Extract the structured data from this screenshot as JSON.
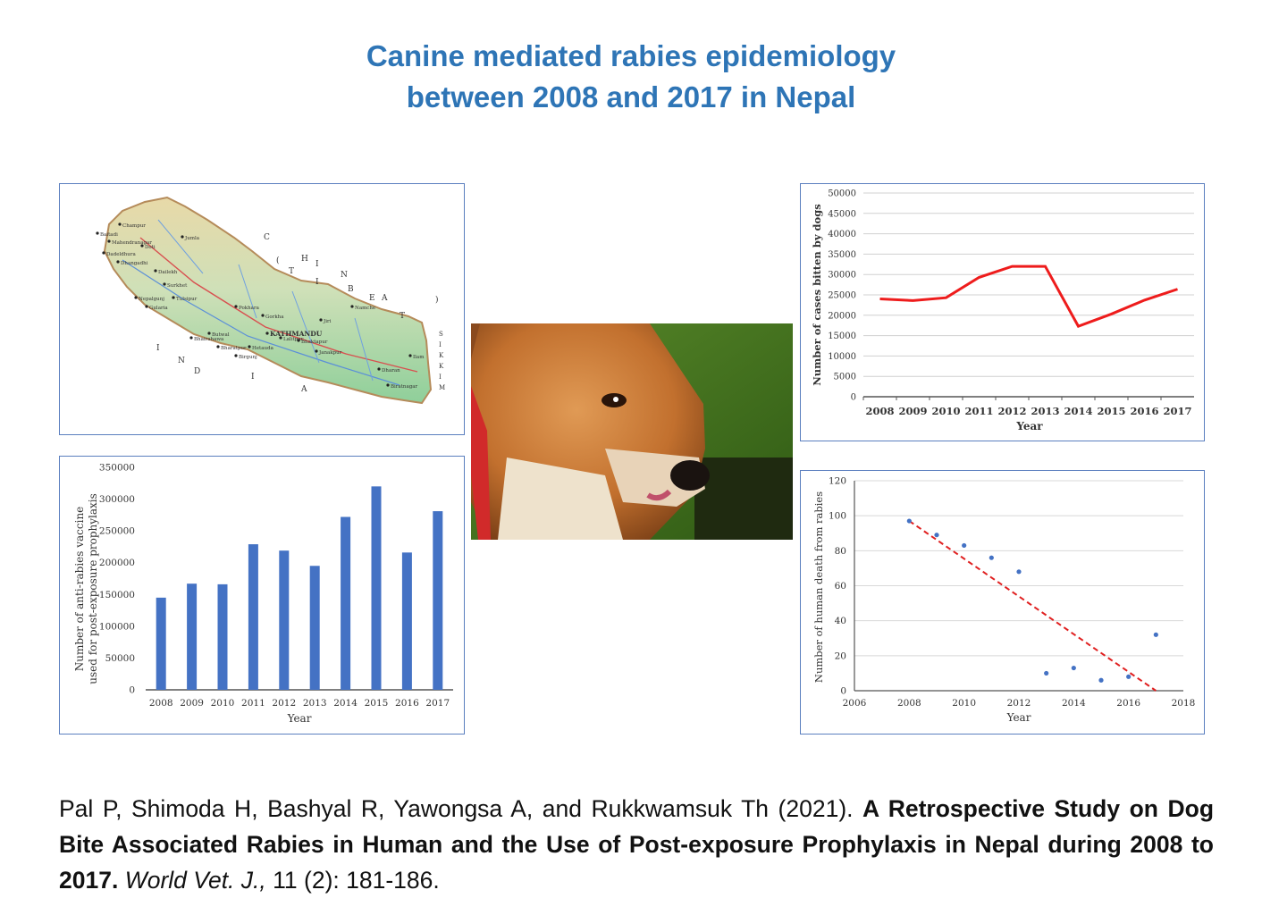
{
  "title": {
    "line1": "Canine mediated rabies epidemiology",
    "line2": "between 2008 and 2017 in Nepal"
  },
  "map": {
    "labels": [
      "Baitadi",
      "Champur",
      "Mahendranagar",
      "Dadeldhura",
      "Dhangadhi",
      "Doti",
      "Surkhet",
      "Nepalgunj",
      "Gularia",
      "Jumla",
      "Dailekh",
      "Tulsipur",
      "Butwal",
      "Pokhara",
      "Bhairahawa",
      "Gorkha",
      "KATHMANDU",
      "Birgunj",
      "Janakpur",
      "Biratnagar",
      "Dharan",
      "Ilam",
      "Jiri",
      "Namche",
      "Lalitpur",
      "Bhaktapur",
      "Hetauda",
      "Bharatpur"
    ],
    "china_letters": [
      "C",
      "H",
      "I",
      "N",
      "A",
      "(",
      "T",
      "I",
      "B",
      "E",
      "T",
      ")"
    ],
    "india_letters": [
      "I",
      "N",
      "D",
      "I",
      "A"
    ],
    "sikkim_letters": [
      "S",
      "I",
      "K",
      "K",
      "I",
      "M"
    ]
  },
  "dog_image": {
    "alt": "dog-photo"
  },
  "citation": {
    "authors": "Pal P, Shimoda H, Bashyal R, Yawongsa A, and Rukkwamsuk Th (2021). ",
    "title": "A Retrospective Study on Dog Bite Associated Rabies in Human and the Use of Post-exposure Prophylaxis in Nepal during 2008 to 2017.",
    "journal": "World Vet. J.,",
    "volume": " 11 (2): 181-186."
  },
  "chart_data": [
    {
      "id": "dog-bites",
      "type": "line",
      "x": [
        2008,
        2009,
        2010,
        2011,
        2012,
        2013,
        2014,
        2015,
        2016,
        2017
      ],
      "series": [
        {
          "values": [
            24000,
            23600,
            24300,
            29300,
            32000,
            32000,
            17300,
            20300,
            23700,
            26400
          ],
          "color": "#ee1c1c"
        }
      ],
      "xlabel": "Year",
      "ylabel": "Number of cases  bitten by dogs",
      "ylim": [
        0,
        50000
      ],
      "yticks": [
        0,
        5000,
        10000,
        15000,
        20000,
        25000,
        30000,
        35000,
        40000,
        45000,
        50000
      ],
      "grid": true
    },
    {
      "id": "vaccine",
      "type": "bar",
      "categories": [
        "2008",
        "2009",
        "2010",
        "2011",
        "2012",
        "2013",
        "2014",
        "2015",
        "2016",
        "2017"
      ],
      "series": [
        {
          "values": [
            145000,
            167000,
            166000,
            229000,
            219000,
            195000,
            272000,
            320000,
            216000,
            281000
          ],
          "color": "#4472c4"
        }
      ],
      "xlabel": "Year",
      "ylabel": "Number of anti-rabies vaccine",
      "ylabel2": "used for post-exposure prophylaxis",
      "ylim": [
        0,
        350000
      ],
      "yticks": [
        0,
        50000,
        100000,
        150000,
        200000,
        250000,
        300000,
        350000
      ],
      "grid": false
    },
    {
      "id": "deaths",
      "type": "scatter",
      "x": [
        2008,
        2009,
        2010,
        2011,
        2012,
        2013,
        2014,
        2015,
        2016,
        2017
      ],
      "series": [
        {
          "values": [
            97,
            89,
            83,
            76,
            68,
            10,
            13,
            6,
            8,
            32
          ],
          "color": "#4472c4"
        }
      ],
      "trendline": {
        "x": [
          2008,
          2017
        ],
        "y": [
          97,
          0
        ],
        "color": "#e02020"
      },
      "xlabel": "Year",
      "ylabel": "Number of human death from rabies",
      "xlim": [
        2006,
        2018
      ],
      "xticks": [
        2006,
        2008,
        2010,
        2012,
        2014,
        2016,
        2018
      ],
      "ylim": [
        0,
        120
      ],
      "yticks": [
        0,
        20,
        40,
        60,
        80,
        100,
        120
      ],
      "grid": true
    }
  ]
}
